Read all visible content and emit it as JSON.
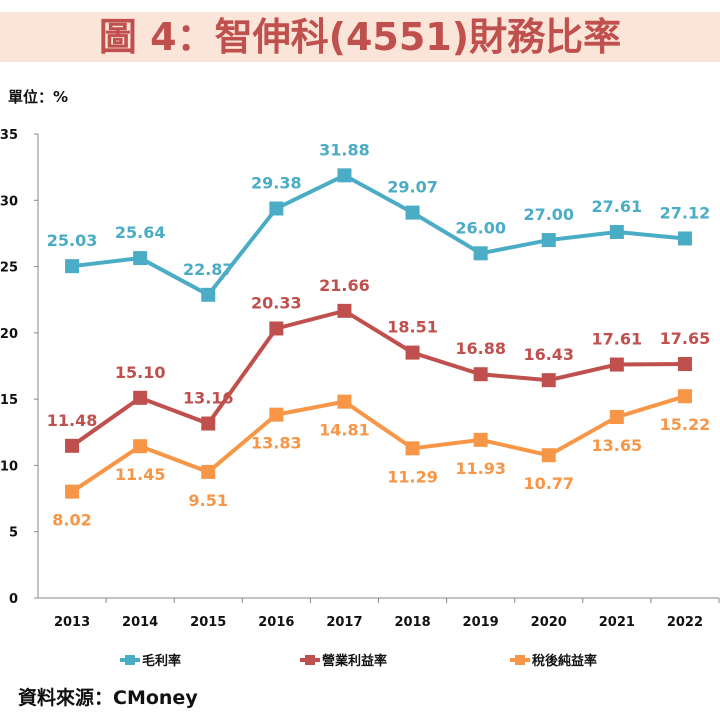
{
  "title": "圖 4：智伸科(4551)財務比率",
  "unit": "單位：%",
  "source": "資料來源：CMoney",
  "chart_data": {
    "type": "line",
    "categories": [
      "2013",
      "2014",
      "2015",
      "2016",
      "2017",
      "2018",
      "2019",
      "2020",
      "2021",
      "2022"
    ],
    "ylim": [
      0,
      35
    ],
    "yticks": [
      0,
      5,
      10,
      15,
      20,
      25,
      30,
      35
    ],
    "grid": false,
    "legend": "bottom",
    "series": [
      {
        "name": "毛利率",
        "color": "#4bacc6",
        "values": [
          25.03,
          25.64,
          22.87,
          29.38,
          31.88,
          29.07,
          26.0,
          27.0,
          27.61,
          27.12
        ],
        "label_pos": "above"
      },
      {
        "name": "營業利益率",
        "color": "#c0504d",
        "values": [
          11.48,
          15.1,
          13.16,
          20.33,
          21.66,
          18.51,
          16.88,
          16.43,
          17.61,
          17.65
        ],
        "label_pos": "above"
      },
      {
        "name": "稅後純益率",
        "color": "#f79646",
        "values": [
          8.02,
          11.45,
          9.51,
          13.83,
          14.81,
          11.29,
          11.93,
          10.77,
          13.65,
          15.22
        ],
        "label_pos": "below"
      }
    ]
  }
}
